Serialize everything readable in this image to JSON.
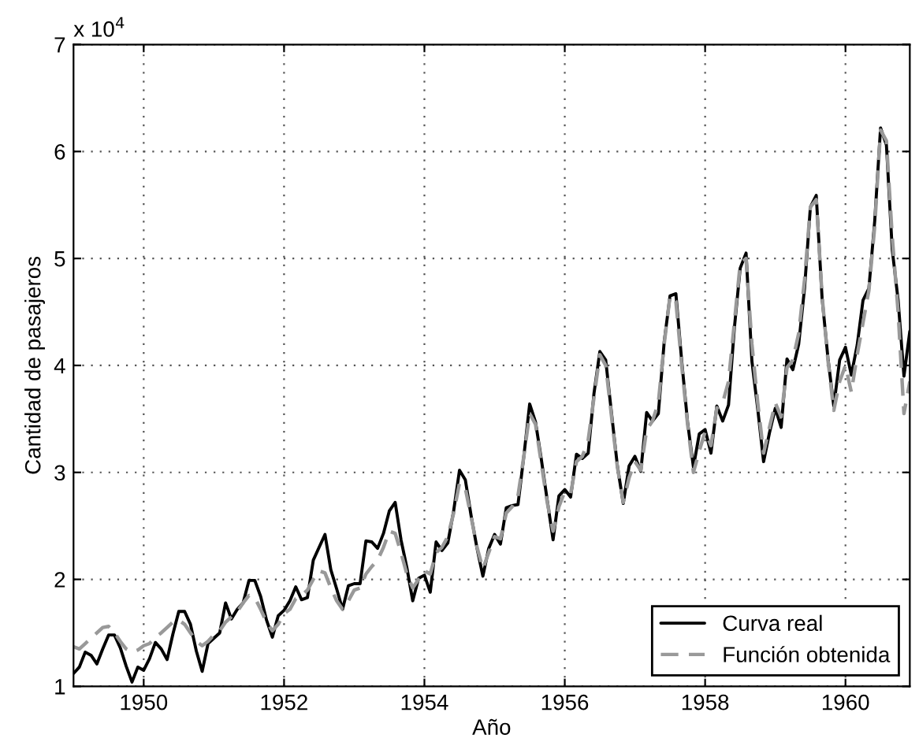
{
  "chart_data": {
    "type": "line",
    "xlabel": "Año",
    "ylabel": "Cantidad de pasajeros",
    "annotations": [
      "x 10$^{4}$"
    ],
    "x": [
      "1949-01",
      "1949-02",
      "1949-03",
      "1949-04",
      "1949-05",
      "1949-06",
      "1949-07",
      "1949-08",
      "1949-09",
      "1949-10",
      "1949-11",
      "1949-12",
      "1950-01",
      "1950-02",
      "1950-03",
      "1950-04",
      "1950-05",
      "1950-06",
      "1950-07",
      "1950-08",
      "1950-09",
      "1950-10",
      "1950-11",
      "1950-12",
      "1951-01",
      "1951-02",
      "1951-03",
      "1951-04",
      "1951-05",
      "1951-06",
      "1951-07",
      "1951-08",
      "1951-09",
      "1951-10",
      "1951-11",
      "1951-12",
      "1952-01",
      "1952-02",
      "1952-03",
      "1952-04",
      "1952-05",
      "1952-06",
      "1952-07",
      "1952-08",
      "1952-09",
      "1952-10",
      "1952-11",
      "1952-12",
      "1953-01",
      "1953-02",
      "1953-03",
      "1953-04",
      "1953-05",
      "1953-06",
      "1953-07",
      "1953-08",
      "1953-09",
      "1953-10",
      "1953-11",
      "1953-12",
      "1954-01",
      "1954-02",
      "1954-03",
      "1954-04",
      "1954-05",
      "1954-06",
      "1954-07",
      "1954-08",
      "1954-09",
      "1954-10",
      "1954-11",
      "1954-12",
      "1955-01",
      "1955-02",
      "1955-03",
      "1955-04",
      "1955-05",
      "1955-06",
      "1955-07",
      "1955-08",
      "1955-09",
      "1955-10",
      "1955-11",
      "1955-12",
      "1956-01",
      "1956-02",
      "1956-03",
      "1956-04",
      "1956-05",
      "1956-06",
      "1956-07",
      "1956-08",
      "1956-09",
      "1956-10",
      "1956-11",
      "1956-12",
      "1957-01",
      "1957-02",
      "1957-03",
      "1957-04",
      "1957-05",
      "1957-06",
      "1957-07",
      "1957-08",
      "1957-09",
      "1957-10",
      "1957-11",
      "1957-12",
      "1958-01",
      "1958-02",
      "1958-03",
      "1958-04",
      "1958-05",
      "1958-06",
      "1958-07",
      "1958-08",
      "1958-09",
      "1958-10",
      "1958-11",
      "1958-12",
      "1959-01",
      "1959-02",
      "1959-03",
      "1959-04",
      "1959-05",
      "1959-06",
      "1959-07",
      "1959-08",
      "1959-09",
      "1959-10",
      "1959-11",
      "1959-12",
      "1960-01",
      "1960-02",
      "1960-03",
      "1960-04",
      "1960-05",
      "1960-06",
      "1960-07",
      "1960-08",
      "1960-09",
      "1960-10",
      "1960-11",
      "1960-12"
    ],
    "series": [
      {
        "name": "Curva real",
        "color": "#000000",
        "line_style": "solid",
        "values": [
          1.12,
          1.18,
          1.32,
          1.29,
          1.21,
          1.35,
          1.48,
          1.48,
          1.36,
          1.19,
          1.04,
          1.18,
          1.15,
          1.26,
          1.41,
          1.35,
          1.25,
          1.49,
          1.7,
          1.7,
          1.58,
          1.33,
          1.14,
          1.4,
          1.45,
          1.5,
          1.78,
          1.63,
          1.72,
          1.78,
          1.99,
          1.99,
          1.84,
          1.62,
          1.46,
          1.66,
          1.71,
          1.8,
          1.93,
          1.81,
          1.83,
          2.18,
          2.3,
          2.42,
          2.09,
          1.91,
          1.72,
          1.94,
          1.96,
          1.96,
          2.36,
          2.35,
          2.29,
          2.43,
          2.64,
          2.72,
          2.37,
          2.11,
          1.8,
          2.01,
          2.04,
          1.88,
          2.35,
          2.27,
          2.34,
          2.64,
          3.02,
          2.93,
          2.59,
          2.29,
          2.03,
          2.29,
          2.42,
          2.33,
          2.67,
          2.69,
          2.7,
          3.15,
          3.64,
          3.47,
          3.12,
          2.74,
          2.37,
          2.78,
          2.84,
          2.77,
          3.17,
          3.13,
          3.18,
          3.74,
          4.13,
          4.05,
          3.55,
          3.06,
          2.71,
          3.06,
          3.15,
          3.01,
          3.56,
          3.48,
          3.55,
          4.22,
          4.65,
          4.67,
          4.04,
          3.47,
          3.05,
          3.36,
          3.4,
          3.18,
          3.62,
          3.48,
          3.63,
          4.35,
          4.91,
          5.05,
          4.04,
          3.59,
          3.1,
          3.37,
          3.6,
          3.42,
          4.06,
          3.96,
          4.2,
          4.72,
          5.48,
          5.59,
          4.63,
          4.07,
          3.62,
          4.05,
          4.17,
          3.91,
          4.19,
          4.61,
          4.72,
          5.35,
          6.22,
          6.06,
          5.08,
          4.61,
          3.9,
          4.32
        ]
      },
      {
        "name": "Función obtenida",
        "color": "#999999",
        "line_style": "dashed",
        "values": [
          1.37,
          1.35,
          1.4,
          1.45,
          1.5,
          1.55,
          1.56,
          1.5,
          1.42,
          1.35,
          1.32,
          1.34,
          1.38,
          1.4,
          1.46,
          1.5,
          1.55,
          1.6,
          1.62,
          1.58,
          1.5,
          1.42,
          1.38,
          1.42,
          1.48,
          1.52,
          1.6,
          1.65,
          1.7,
          1.78,
          1.85,
          1.83,
          1.72,
          1.6,
          1.52,
          1.58,
          1.68,
          1.72,
          1.82,
          1.85,
          1.9,
          2.0,
          2.08,
          2.06,
          1.92,
          1.8,
          1.72,
          1.8,
          1.9,
          1.92,
          2.05,
          2.12,
          2.18,
          2.3,
          2.45,
          2.43,
          2.25,
          2.05,
          1.92,
          2.0,
          2.08,
          2.05,
          2.25,
          2.3,
          2.4,
          2.62,
          2.9,
          2.85,
          2.58,
          2.3,
          2.1,
          2.25,
          2.4,
          2.38,
          2.62,
          2.68,
          2.78,
          3.15,
          3.55,
          3.45,
          3.08,
          2.72,
          2.45,
          2.68,
          2.82,
          2.8,
          3.1,
          3.15,
          3.3,
          3.7,
          4.1,
          4.0,
          3.52,
          3.05,
          2.72,
          2.95,
          3.1,
          3.02,
          3.4,
          3.48,
          3.65,
          4.2,
          4.65,
          4.6,
          4.0,
          3.45,
          3.0,
          3.2,
          3.38,
          3.25,
          3.6,
          3.65,
          3.85,
          4.4,
          4.95,
          5.0,
          4.2,
          3.65,
          3.18,
          3.42,
          3.65,
          3.52,
          3.98,
          4.05,
          4.3,
          4.8,
          5.48,
          5.55,
          4.65,
          4.05,
          3.58,
          3.85,
          4.0,
          3.75,
          4.1,
          4.4,
          4.7,
          5.3,
          6.2,
          6.1,
          5.2,
          4.5,
          3.55,
          3.85
        ]
      }
    ],
    "xlim": [
      "1949-01",
      "1960-12"
    ],
    "xticks": [
      "1950",
      "1952",
      "1954",
      "1956",
      "1958",
      "1960"
    ],
    "ylim": [
      1,
      7
    ],
    "yticks": [
      1,
      2,
      3,
      4,
      5,
      6,
      7
    ],
    "grid": true,
    "legend": "bottom right"
  }
}
